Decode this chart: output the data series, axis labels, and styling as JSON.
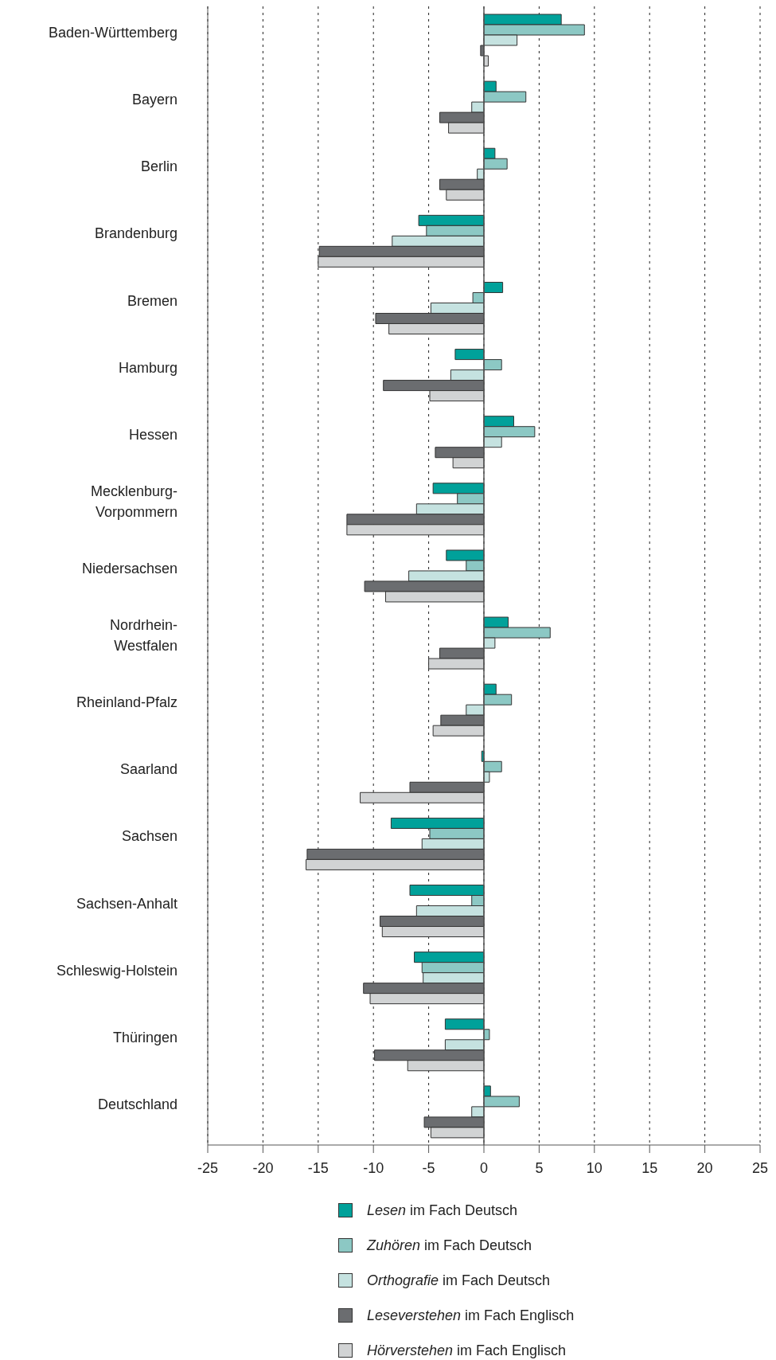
{
  "chart_data": {
    "type": "bar",
    "orientation": "horizontal",
    "categories": [
      "Baden-Württemberg",
      "Bayern",
      "Berlin",
      "Brandenburg",
      "Bremen",
      "Hamburg",
      "Hessen",
      "Mecklenburg-Vorpommern",
      "Niedersachsen",
      "Nordrhein-Westfalen",
      "Rheinland-Pfalz",
      "Saarland",
      "Sachsen",
      "Sachsen-Anhalt",
      "Schleswig-Holstein",
      "Thüringen",
      "Deutschland"
    ],
    "series": [
      {
        "name": "Lesen im Fach Deutsch",
        "color": "#00a19a",
        "values": [
          7.0,
          1.1,
          1.0,
          -5.9,
          1.7,
          -2.6,
          2.7,
          -4.6,
          -3.4,
          2.2,
          1.1,
          -0.2,
          -8.4,
          -6.7,
          -6.3,
          -3.5,
          0.6
        ]
      },
      {
        "name": "Zuhören im Fach Deutsch",
        "color": "#8cc8c4",
        "values": [
          9.1,
          3.8,
          2.1,
          -5.2,
          -1.0,
          1.6,
          4.6,
          -2.4,
          -1.6,
          6.0,
          2.5,
          1.6,
          -4.9,
          -1.1,
          -5.6,
          0.5,
          3.2
        ]
      },
      {
        "name": "Orthografie im Fach Deutsch",
        "color": "#c5e2e0",
        "values": [
          3.0,
          -1.1,
          -0.6,
          -8.3,
          -4.8,
          -3.0,
          1.6,
          -6.1,
          -6.8,
          1.0,
          -1.6,
          0.5,
          -5.6,
          -6.1,
          -5.5,
          -3.5,
          -1.1
        ]
      },
      {
        "name": "Leseverstehen im Fach Englisch",
        "color": "#6b6d70",
        "values": [
          -0.3,
          -4.0,
          -4.0,
          -14.9,
          -9.8,
          -9.1,
          -4.4,
          -12.4,
          -10.8,
          -4.0,
          -3.9,
          -6.7,
          -16.0,
          -9.4,
          -10.9,
          -9.9,
          -5.4
        ]
      },
      {
        "name": "Hörverstehen im Fach Englisch",
        "color": "#d1d3d4",
        "values": [
          0.4,
          -3.2,
          -3.4,
          -15.0,
          -8.6,
          -4.9,
          -2.8,
          -12.4,
          -8.9,
          -5.0,
          -4.6,
          -11.2,
          -16.1,
          -9.2,
          -10.3,
          -6.9,
          -4.8
        ]
      }
    ],
    "xlim": [
      -25,
      25
    ],
    "xticks": [
      -25,
      -20,
      -15,
      -10,
      -5,
      0,
      5,
      10,
      15,
      20,
      25
    ],
    "grid": "x",
    "legend": "bottom"
  }
}
